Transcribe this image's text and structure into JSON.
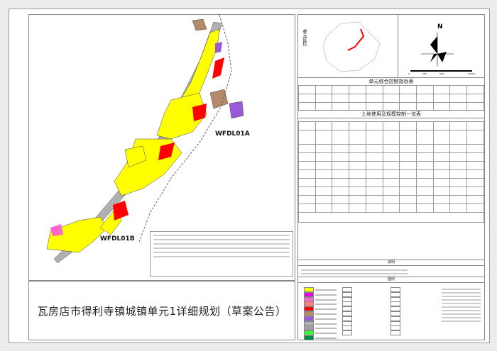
{
  "title": "瓦房店市得利寺镇城镇单元1详细规划（草案公告）",
  "map": {
    "unit_labels": [
      "WFDL01A",
      "WFDL01B"
    ]
  },
  "panel": {
    "location_label": "单元区位",
    "north_label": "N",
    "scale_ticks": [
      "0",
      "250",
      "500",
      "1000m"
    ],
    "control_table_title": "单元综合控制指标表",
    "landuse_table_title": "土地使用及规模控制一览表",
    "notes_title": "说明",
    "legend_title": "图例"
  },
  "legend_colors": [
    "#ffff00",
    "#e000e0",
    "#ff66cc",
    "#ff8080",
    "#ff0000",
    "#b58a6a",
    "#9a5ad8",
    "#b0b0b0",
    "#a0a0a0",
    "#33ff33",
    "#008844"
  ],
  "map_colors": {
    "residential": "#ffff00",
    "commercial": "#ff0000",
    "public": "#9a5ad8",
    "industrial": "#b58a6a",
    "road": "#a0a0a0",
    "green": "#33cc33"
  }
}
